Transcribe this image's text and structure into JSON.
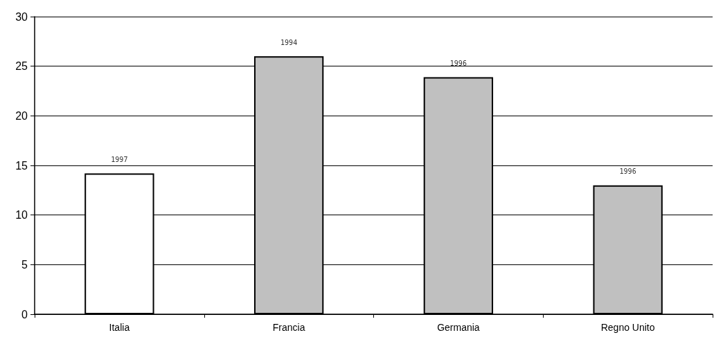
{
  "chart_data": {
    "type": "bar",
    "categories": [
      "Italia",
      "Francia",
      "Germania",
      "Regno Unito"
    ],
    "values": [
      14.2,
      26.0,
      23.9,
      13.0
    ],
    "colors": [
      "#ffffff",
      "#c0c0c0",
      "#c0c0c0",
      "#c0c0c0"
    ],
    "annotations": [
      {
        "text": "1997",
        "x": "Italia",
        "y": 14.2
      },
      {
        "text": "1994",
        "x": "Francia",
        "y": 26.0
      },
      {
        "text": "1996",
        "x": "Germania",
        "y": 23.9
      },
      {
        "text": "1996",
        "x": "Regno Unito",
        "y": 13.0
      }
    ],
    "ylim": [
      0,
      30
    ],
    "yticks": [
      0,
      5,
      10,
      15,
      20,
      25,
      30
    ],
    "grid": "y"
  }
}
